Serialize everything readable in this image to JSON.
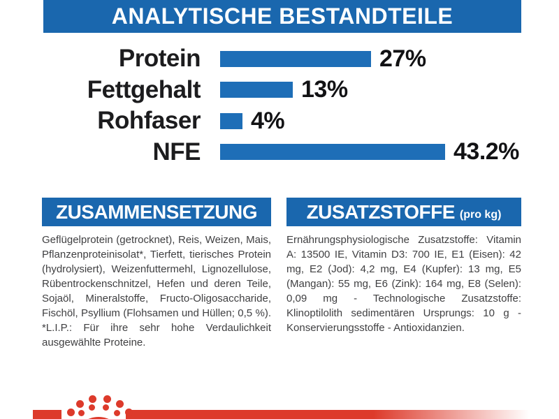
{
  "header": {
    "title": "ANALYTISCHE BESTANDTEILE"
  },
  "chart_data": {
    "type": "bar",
    "orientation": "horizontal",
    "categories": [
      "Protein",
      "Fettgehalt",
      "Rohfaser",
      "NFE"
    ],
    "values": [
      27,
      13,
      4,
      43.2
    ],
    "value_labels": [
      "27%",
      "13%",
      "4%",
      "43.2%"
    ],
    "title": "ANALYTISCHE BESTANDTEILE",
    "xlabel": "",
    "ylabel": "",
    "xlim": [
      0,
      45
    ],
    "grid": false,
    "legend": "none",
    "bar_color": "#1e6eb7"
  },
  "sections": {
    "composition": {
      "title": "ZUSAMMENSETZUNG",
      "body": "Geflügelprotein (getrocknet), Reis, Weizen, Mais, Pflanzenproteinisolat*, Tierfett, tierisches Protein (hydrolysiert), Weizenfuttermehl, Lignozellulose, Rübentrockenschnitzel, Hefen und deren Teile, Sojaöl, Mineralstoffe, Fructo-Oligosaccharide, Fischöl, Psyllium (Flohsamen und Hüllen; 0,5 %). *L.I.P.: Für ihre sehr hohe Verdaulichkeit ausgewählte Proteine."
    },
    "additives": {
      "title": "ZUSATZSTOFFE",
      "title_suffix": "(pro kg)",
      "body": "Ernährungsphysiologische Zusatzstoffe: Vitamin A: 13500 IE, Vitamin D3: 700 IE, E1 (Eisen): 42 mg, E2 (Jod): 4,2 mg, E4 (Kupfer): 13 mg, E5 (Mangan): 55 mg, E6 (Zink): 164 mg, E8 (Selen): 0,09 mg - Technologische Zusatzstoffe: Klinoptilolith sedimentären Ursprungs: 10 g - Konservierungsstoffe - Antioxidanzien."
    }
  },
  "logo": {
    "icon": "royal-canin-crown-icon"
  },
  "colors": {
    "blue_banner": "#1a67ae",
    "blue_bar": "#1e6eb7",
    "red": "#dd3a2b",
    "text_dark": "#1c1c1e",
    "text_body": "#3f3f41"
  }
}
